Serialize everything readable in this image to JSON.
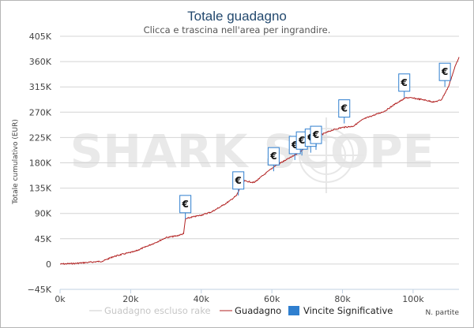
{
  "chart_data": {
    "type": "line",
    "title": "Totale guadagno",
    "subtitle": "Clicca e trascina nell'area per ingrandire.",
    "xlabel": "N. partite",
    "ylabel": "Totale cumulativo (EUR)",
    "watermark": "SHARK SCOPE",
    "xlim": [
      0,
      113000
    ],
    "ylim": [
      -45000,
      405000
    ],
    "x_ticks": [
      0,
      20000,
      40000,
      60000,
      80000,
      100000
    ],
    "x_tick_labels": [
      "0k",
      "20k",
      "40k",
      "60k",
      "80k",
      "100k"
    ],
    "y_ticks": [
      -45000,
      0,
      45000,
      90000,
      135000,
      180000,
      225000,
      270000,
      315000,
      360000,
      405000
    ],
    "y_tick_labels": [
      "−45K",
      "0",
      "45K",
      "90K",
      "135K",
      "180K",
      "225K",
      "270K",
      "315K",
      "360K",
      "405K"
    ],
    "grid": true,
    "legend_position": "bottom",
    "series": [
      {
        "name": "Guadagno escluso rake",
        "color": "#c8c8c8",
        "x": [],
        "y": []
      },
      {
        "name": "Guadagno",
        "color": "#b22222",
        "x": [
          0,
          4000,
          8000,
          12000,
          15000,
          18000,
          21000,
          24000,
          27000,
          30000,
          33000,
          35000,
          35500,
          37000,
          40000,
          43000,
          46000,
          48000,
          50000,
          52000,
          55000,
          58000,
          61000,
          64000,
          66000,
          68000,
          70000,
          72000,
          74000,
          77000,
          80000,
          83000,
          86000,
          89000,
          92000,
          95000,
          97000,
          98000,
          100000,
          103000,
          106000,
          108000,
          110000,
          112000,
          113000
        ],
        "y": [
          0,
          1000,
          3000,
          5000,
          13000,
          18000,
          22000,
          30000,
          38000,
          47000,
          50000,
          54000,
          80000,
          83000,
          87000,
          93000,
          104000,
          112000,
          122000,
          148000,
          145000,
          160000,
          175000,
          185000,
          192000,
          200000,
          210000,
          220000,
          230000,
          238000,
          243000,
          245000,
          258000,
          265000,
          272000,
          285000,
          292000,
          296000,
          295000,
          292000,
          288000,
          292000,
          315000,
          353000,
          368000
        ]
      }
    ],
    "significant_wins": {
      "name": "Vincite Significative",
      "label": "€",
      "color": "#2f7fcf",
      "x": [
        35500,
        50500,
        60500,
        66500,
        68500,
        71000,
        72500,
        80500,
        97500,
        109000
      ],
      "y": [
        80000,
        122000,
        165000,
        185000,
        193000,
        198000,
        203000,
        250000,
        296000,
        315000
      ]
    }
  }
}
